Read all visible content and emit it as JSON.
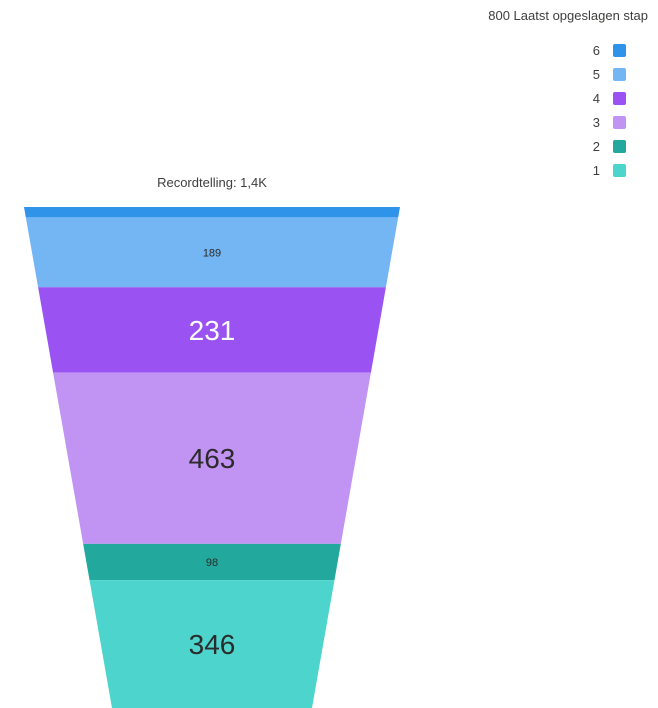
{
  "chart_data": {
    "type": "funnel",
    "title": "Recordtelling: 1,4K",
    "legend": {
      "title": "800 Laatst opgeslagen stap",
      "position": "top-right"
    },
    "series": [
      {
        "name": "6",
        "value": 28,
        "color": "#2f94e9",
        "label": ""
      },
      {
        "name": "5",
        "value": 189,
        "color": "#74b5f4",
        "label": "189"
      },
      {
        "name": "4",
        "value": 231,
        "color": "#9b52f2",
        "label": "231"
      },
      {
        "name": "3",
        "value": 463,
        "color": "#c193f3",
        "label": "463"
      },
      {
        "name": "2",
        "value": 98,
        "color": "#22a89c",
        "label": "98"
      },
      {
        "name": "1",
        "value": 346,
        "color": "#4dd4cc",
        "label": "346"
      }
    ]
  }
}
